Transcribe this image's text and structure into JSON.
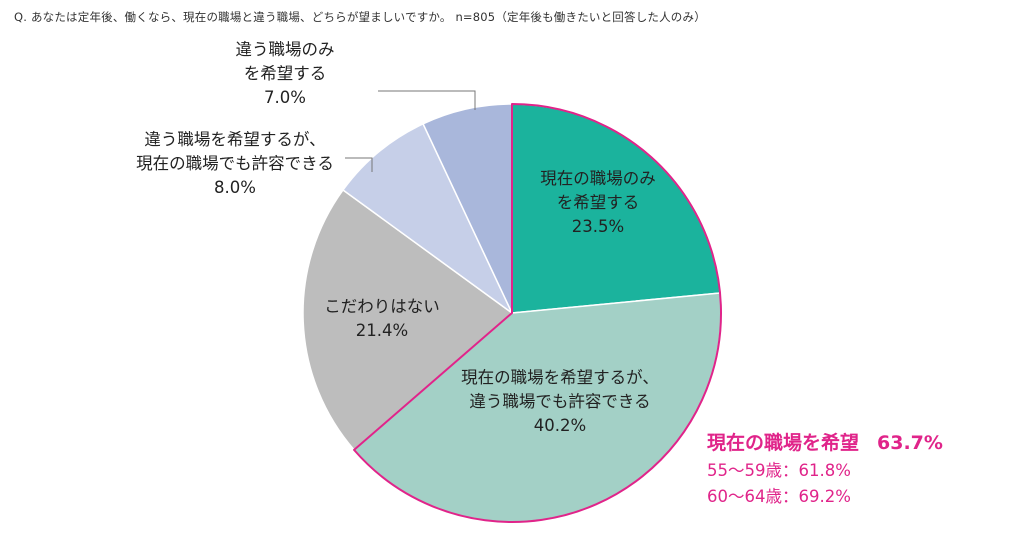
{
  "question": "Q. あなたは定年後、働くなら、現在の職場と違う職場、どちらが望ましいですか。 n=805（定年後も働きたいと回答した人のみ）",
  "colors": {
    "highlight": "#e0248a"
  },
  "chart_data": {
    "type": "pie",
    "unit": "%",
    "slices": [
      {
        "label_lines": [
          "現在の職場のみ",
          "を希望する"
        ],
        "value": 23.5,
        "value_text": "23.5%",
        "color": "#1bb39d"
      },
      {
        "label_lines": [
          "現在の職場を希望するが、",
          "違う職場でも許容できる"
        ],
        "value": 40.2,
        "value_text": "40.2%",
        "color": "#a3d0c6"
      },
      {
        "label_lines": [
          "こだわりはない"
        ],
        "value": 21.4,
        "value_text": "21.4%",
        "color": "#bdbdbd"
      },
      {
        "label_lines": [
          "違う職場を希望するが、",
          "現在の職場でも許容できる"
        ],
        "value": 8.0,
        "value_text": "8.0%",
        "color": "#c6cfe8"
      },
      {
        "label_lines": [
          "違う職場のみ",
          "を希望する"
        ],
        "value": 7.0,
        "value_text": "7.0%",
        "color": "#a9b7db"
      }
    ],
    "highlight_group": {
      "title": "現在の職場を希望",
      "value_text": "63.7%",
      "value": 63.7,
      "breakdown": [
        {
          "label": "55～59歳",
          "value": 61.8,
          "text": "55～59歳：61.8%"
        },
        {
          "label": "60～64歳",
          "value": 69.2,
          "text": "60～64歳：69.2%"
        }
      ]
    }
  }
}
